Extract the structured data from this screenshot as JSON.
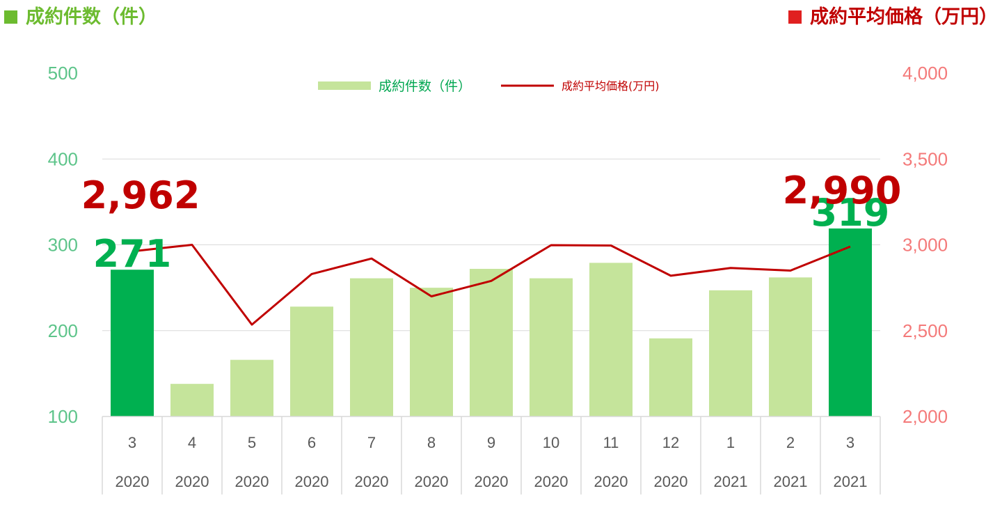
{
  "header": {
    "left_title": "成約件数（件）",
    "right_title": "成約平均価格（万円）"
  },
  "colors": {
    "bar": "#C5E49B",
    "bar_highlight": "#00B050",
    "line": "#C00000",
    "left_axis": "#5DC48A",
    "right_axis": "#F47A7A"
  },
  "chart_data": {
    "type": "bar",
    "categories": [
      "3",
      "4",
      "5",
      "6",
      "7",
      "8",
      "9",
      "10",
      "11",
      "12",
      "1",
      "2",
      "3"
    ],
    "years": [
      "2020",
      "2020",
      "2020",
      "2020",
      "2020",
      "2020",
      "2020",
      "2020",
      "2020",
      "2020",
      "2021",
      "2021",
      "2021"
    ],
    "series": [
      {
        "name": "成約件数（件）",
        "type": "bar",
        "axis": "left",
        "values": [
          271,
          138,
          166,
          228,
          261,
          250,
          272,
          261,
          279,
          191,
          247,
          262,
          319
        ],
        "highlight_indices": [
          0,
          12
        ]
      },
      {
        "name": "成約平均価格(万円)",
        "type": "line",
        "axis": "right",
        "values": [
          2962,
          3000,
          2535,
          2830,
          2920,
          2700,
          2790,
          2998,
          2996,
          2820,
          2865,
          2850,
          2990
        ]
      }
    ],
    "ylim_left": [
      100,
      500
    ],
    "yticks_left": [
      "100",
      "200",
      "300",
      "400",
      "500"
    ],
    "ylim_right": [
      2000,
      4000
    ],
    "yticks_right": [
      "2,000",
      "2,500",
      "3,000",
      "3,500",
      "4,000"
    ],
    "data_labels": [
      {
        "series": 0,
        "index": 0,
        "text": "271"
      },
      {
        "series": 1,
        "index": 0,
        "text": "2,962"
      },
      {
        "series": 0,
        "index": 12,
        "text": "319"
      },
      {
        "series": 1,
        "index": 12,
        "text": "2,990"
      }
    ],
    "grid": true,
    "legend_position": "top-center"
  }
}
